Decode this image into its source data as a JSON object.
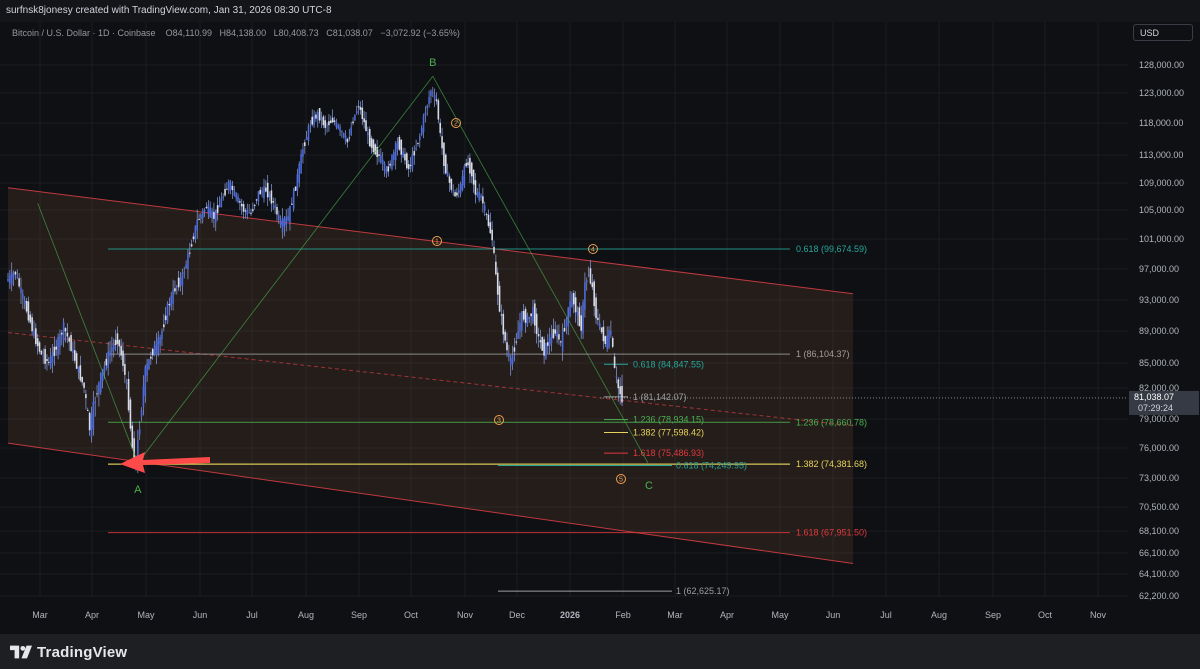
{
  "header": {
    "attribution": "surfnsk8jonesy created with TradingView.com, Jan 31, 2026 08:30 UTC-8"
  },
  "symbol": {
    "title": "Bitcoin / U.S. Dollar · 1D · Coinbase",
    "open": "O84,110.99",
    "high": "H84,138.00",
    "low": "L80,408.73",
    "close": "C81,038.07",
    "change": "−3,072.92 (−3.65%)"
  },
  "currency_button": "USD",
  "footer": {
    "brand": "TradingView"
  },
  "colors": {
    "bg": "#0f1013",
    "candle": "#4c6ad9",
    "fib_green": "#4caf50",
    "fib_yellow": "#e6d35b",
    "fib_red": "#e0393e",
    "fib_grey": "#9e9e9e",
    "fib_teal": "#26a69a",
    "wave_orange": "#f0a050",
    "channel_red": "#c0393f",
    "arrow": "#ff4a4a"
  },
  "chart_data": {
    "type": "candlestick",
    "instrument": "Bitcoin / U.S. Dollar",
    "timeframe": "1D",
    "exchange": "Coinbase",
    "x_tick_labels": [
      "Mar",
      "Apr",
      "May",
      "Jun",
      "Jul",
      "Aug",
      "Sep",
      "Oct",
      "Nov",
      "Dec",
      "2026",
      "Feb",
      "Mar",
      "Apr",
      "May",
      "Jun",
      "Jul",
      "Aug",
      "Sep",
      "Oct",
      "Nov"
    ],
    "y_tick_labels": [
      "128,000.00",
      "123,000.00",
      "118,000.00",
      "113,000.00",
      "109,000.00",
      "105,000.00",
      "101,000.00",
      "97,000.00",
      "93,000.00",
      "89,000.00",
      "85,000.00",
      "82,000.00",
      "79,000.00",
      "76,000.00",
      "73,000.00",
      "70,500.00",
      "68,100.00",
      "66,100.00",
      "64,100.00",
      "62,200.00"
    ],
    "y_tick_values": [
      128000,
      123000,
      118000,
      113000,
      109000,
      105000,
      101000,
      97000,
      93000,
      89000,
      85000,
      82000,
      79000,
      76000,
      73000,
      70500,
      68100,
      66100,
      64100,
      62200
    ],
    "last_price": {
      "label": "81,038.07",
      "value": 81038.07,
      "countdown": "07:29:24"
    },
    "price_path": [
      [
        0,
        95500
      ],
      [
        5,
        96500
      ],
      [
        8,
        94000
      ],
      [
        12,
        91000
      ],
      [
        15,
        88500
      ],
      [
        19,
        86000
      ],
      [
        23,
        85000
      ],
      [
        27,
        87000
      ],
      [
        31,
        89500
      ],
      [
        35,
        87000
      ],
      [
        39,
        84000
      ],
      [
        42,
        82000
      ],
      [
        45,
        78000
      ],
      [
        48,
        81000
      ],
      [
        52,
        84000
      ],
      [
        56,
        86500
      ],
      [
        60,
        88000
      ],
      [
        63,
        85000
      ],
      [
        66,
        80500
      ],
      [
        68,
        76000
      ],
      [
        70,
        74500
      ],
      [
        72,
        78500
      ],
      [
        75,
        84000
      ],
      [
        79,
        86500
      ],
      [
        83,
        88000
      ],
      [
        87,
        92000
      ],
      [
        91,
        94500
      ],
      [
        95,
        96000
      ],
      [
        99,
        99500
      ],
      [
        103,
        103500
      ],
      [
        108,
        105500
      ],
      [
        112,
        104000
      ],
      [
        116,
        106500
      ],
      [
        120,
        109000
      ],
      [
        124,
        107000
      ],
      [
        128,
        105000
      ],
      [
        132,
        104500
      ],
      [
        136,
        107500
      ],
      [
        140,
        108000
      ],
      [
        144,
        106000
      ],
      [
        148,
        103000
      ],
      [
        152,
        104000
      ],
      [
        156,
        108500
      ],
      [
        160,
        114000
      ],
      [
        164,
        118000
      ],
      [
        168,
        119500
      ],
      [
        172,
        117500
      ],
      [
        176,
        118500
      ],
      [
        180,
        117000
      ],
      [
        184,
        115000
      ],
      [
        187,
        118500
      ],
      [
        190,
        121000
      ],
      [
        193,
        118000
      ],
      [
        196,
        115000
      ],
      [
        199,
        113500
      ],
      [
        202,
        112500
      ],
      [
        205,
        110500
      ],
      [
        208,
        112500
      ],
      [
        211,
        115000
      ],
      [
        214,
        113000
      ],
      [
        217,
        111000
      ],
      [
        220,
        113500
      ],
      [
        223,
        116000
      ],
      [
        226,
        120000
      ],
      [
        229,
        123500
      ],
      [
        232,
        121500
      ],
      [
        234,
        116000
      ],
      [
        236,
        112000
      ],
      [
        239,
        109000
      ],
      [
        242,
        107000
      ],
      [
        245,
        108500
      ],
      [
        248,
        112000
      ],
      [
        251,
        110500
      ],
      [
        253,
        107500
      ],
      [
        256,
        107000
      ],
      [
        259,
        104000
      ],
      [
        262,
        101000
      ],
      [
        264,
        96000
      ],
      [
        266,
        92000
      ],
      [
        268,
        89000
      ],
      [
        270,
        86500
      ],
      [
        272,
        85000
      ],
      [
        275,
        88000
      ],
      [
        278,
        91000
      ],
      [
        281,
        90500
      ],
      [
        284,
        91500
      ],
      [
        287,
        88000
      ],
      [
        290,
        86500
      ],
      [
        293,
        88000
      ],
      [
        296,
        89000
      ],
      [
        299,
        87500
      ],
      [
        302,
        90500
      ],
      [
        305,
        93500
      ],
      [
        308,
        91000
      ],
      [
        310,
        89500
      ],
      [
        312,
        95000
      ],
      [
        314,
        96500
      ],
      [
        316,
        94500
      ],
      [
        318,
        91000
      ],
      [
        320,
        89500
      ],
      [
        323,
        87500
      ],
      [
        326,
        89000
      ],
      [
        328,
        84000
      ],
      [
        330,
        82000
      ],
      [
        332,
        81038
      ]
    ],
    "fib_levels": [
      {
        "label": "0.618 (99,674.59)",
        "value": 99674.59,
        "color": "#26a69a"
      },
      {
        "label": "1 (86,104.37)",
        "value": 86104.37,
        "color": "#9e9e9e"
      },
      {
        "label": "1.236 (78,660.78)",
        "value": 78660.78,
        "color": "#4caf50"
      },
      {
        "label": "1.382 (74,381.68)",
        "value": 74381.68,
        "color": "#e6d35b"
      },
      {
        "label": "1.618 (67,951.50)",
        "value": 67951.5,
        "color": "#e0393e"
      }
    ],
    "fib_levels_inner": [
      {
        "label": "0.618 (84,847.55)",
        "value": 84847.55,
        "color": "#26a69a"
      },
      {
        "label": "1 (81,142.07)",
        "value": 81142.07,
        "color": "#9e9e9e"
      },
      {
        "label": "1.236 (78,934.15)",
        "value": 78934.15,
        "color": "#4caf50"
      },
      {
        "label": "1.382 (77,598.42)",
        "value": 77598.42,
        "color": "#e6d35b"
      },
      {
        "label": "1.618 (75,486.93)",
        "value": 75486.93,
        "color": "#e0393e"
      },
      {
        "label": "0.618 (74,249.95)",
        "value": 74249.95,
        "color": "#26a69a"
      }
    ],
    "extra_level": {
      "label": "1 (62,625.17)",
      "value": 62625.17
    },
    "wave_labels": [
      "A",
      "B",
      "C"
    ],
    "elliott_labels": [
      "1",
      "2",
      "3",
      "4",
      "5"
    ]
  }
}
